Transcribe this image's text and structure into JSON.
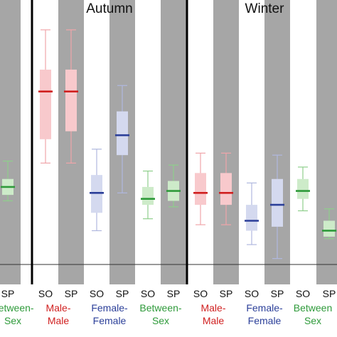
{
  "chart_data": {
    "type": "box",
    "seasons": [
      {
        "label": "Autumn"
      },
      {
        "label": "Winter"
      }
    ],
    "boxes": [
      {
        "x": "SP",
        "group": "Between-Sex",
        "season": "",
        "whisker_low": 0.32,
        "q1": 0.35,
        "median": 0.39,
        "q3": 0.43,
        "whisker_high": 0.52,
        "color": "#2e9a3a",
        "fill": "#cdebc9",
        "whisker_color": "#8fcf8c",
        "shaded": true
      },
      {
        "x": "SO",
        "group": "Male-Male",
        "season": "Autumn",
        "whisker_low": 0.51,
        "q1": 0.63,
        "median": 0.87,
        "q3": 0.98,
        "whisker_high": 1.18,
        "color": "#d02020",
        "fill": "#f8c9cc",
        "whisker_color": "#f0a5aa",
        "shaded": false
      },
      {
        "x": "SP",
        "group": "Male-Male",
        "season": "Autumn",
        "whisker_low": 0.51,
        "q1": 0.67,
        "median": 0.87,
        "q3": 0.98,
        "whisker_high": 1.18,
        "color": "#d02020",
        "fill": "#f8c9cc",
        "whisker_color": "#f0a5aa",
        "shaded": true
      },
      {
        "x": "SO",
        "group": "Female-Female",
        "season": "Autumn",
        "whisker_low": 0.17,
        "q1": 0.26,
        "median": 0.36,
        "q3": 0.45,
        "whisker_high": 0.58,
        "color": "#2b3f99",
        "fill": "#d4d9ef",
        "whisker_color": "#b0b8df",
        "shaded": false
      },
      {
        "x": "SP",
        "group": "Female-Female",
        "season": "Autumn",
        "whisker_low": 0.36,
        "q1": 0.55,
        "median": 0.65,
        "q3": 0.77,
        "whisker_high": 0.9,
        "color": "#2b3f99",
        "fill": "#d4d9ef",
        "whisker_color": "#b0b8df",
        "shaded": true
      },
      {
        "x": "SO",
        "group": "Between-Sex",
        "season": "Autumn",
        "whisker_low": 0.23,
        "q1": 0.3,
        "median": 0.33,
        "q3": 0.39,
        "whisker_high": 0.47,
        "color": "#2e9a3a",
        "fill": "#cdebc9",
        "whisker_color": "#8fcf8c",
        "shaded": false
      },
      {
        "x": "SP",
        "group": "Between-Sex",
        "season": "Autumn",
        "whisker_low": 0.29,
        "q1": 0.32,
        "median": 0.37,
        "q3": 0.42,
        "whisker_high": 0.5,
        "color": "#2e9a3a",
        "fill": "#cdebc9",
        "whisker_color": "#8fcf8c",
        "shaded": true
      },
      {
        "x": "SO",
        "group": "Male-Male",
        "season": "Winter",
        "whisker_low": 0.2,
        "q1": 0.3,
        "median": 0.36,
        "q3": 0.46,
        "whisker_high": 0.56,
        "color": "#d02020",
        "fill": "#f8c9cc",
        "whisker_color": "#f0a5aa",
        "shaded": false
      },
      {
        "x": "SP",
        "group": "Male-Male",
        "season": "Winter",
        "whisker_low": 0.2,
        "q1": 0.3,
        "median": 0.36,
        "q3": 0.46,
        "whisker_high": 0.56,
        "color": "#d02020",
        "fill": "#f8c9cc",
        "whisker_color": "#f0a5aa",
        "shaded": true
      },
      {
        "x": "SO",
        "group": "Female-Female",
        "season": "Winter",
        "whisker_low": 0.1,
        "q1": 0.17,
        "median": 0.22,
        "q3": 0.3,
        "whisker_high": 0.41,
        "color": "#2b3f99",
        "fill": "#d4d9ef",
        "whisker_color": "#b0b8df",
        "shaded": false
      },
      {
        "x": "SP",
        "group": "Female-Female",
        "season": "Winter",
        "whisker_low": 0.03,
        "q1": 0.19,
        "median": 0.3,
        "q3": 0.43,
        "whisker_high": 0.55,
        "color": "#2b3f99",
        "fill": "#d4d9ef",
        "whisker_color": "#b0b8df",
        "shaded": true
      },
      {
        "x": "SO",
        "group": "Between-Sex",
        "season": "Winter",
        "whisker_low": 0.27,
        "q1": 0.33,
        "median": 0.37,
        "q3": 0.43,
        "whisker_high": 0.49,
        "color": "#2e9a3a",
        "fill": "#cdebc9",
        "whisker_color": "#8fcf8c",
        "shaded": false
      },
      {
        "x": "SP",
        "group": "Between-Sex",
        "season": "Winter",
        "whisker_low": 0.13,
        "q1": 0.14,
        "median": 0.17,
        "q3": 0.22,
        "whisker_high": 0.28,
        "color": "#2e9a3a",
        "fill": "#cdebc9",
        "whisker_color": "#8fcf8c",
        "shaded": true
      }
    ],
    "group_labels": [
      {
        "line1": "",
        "line2": "Sex",
        "line1_partial": "Between-",
        "color": "#2e9a3a"
      },
      {
        "line1": "Male-",
        "line2": "Male",
        "color": "#d02020"
      },
      {
        "line1": "Female-",
        "line2": "Female",
        "color": "#2b3f99"
      },
      {
        "line1": "Between-",
        "line2": "Sex",
        "color": "#2e9a3a"
      },
      {
        "line1": "Male-",
        "line2": "Male",
        "color": "#d02020"
      },
      {
        "line1": "Female-",
        "line2": "Female",
        "color": "#2b3f99"
      },
      {
        "line1": "Between",
        "line2": "Sex",
        "color": "#2e9a3a"
      }
    ],
    "baseline_value": 0.0,
    "ylim": [
      -0.1,
      1.33
    ],
    "shade_color": "#a6a6a6",
    "grid": false
  }
}
